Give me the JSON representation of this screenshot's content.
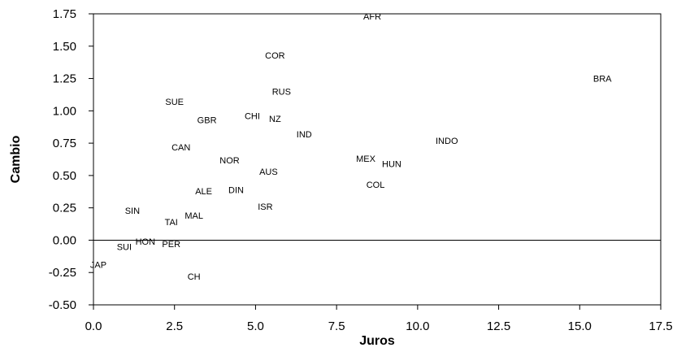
{
  "chart_data": {
    "type": "scatter",
    "xlabel": "Juros",
    "ylabel": "Cambio",
    "xlim": [
      0,
      17.5
    ],
    "ylim": [
      -0.5,
      1.75
    ],
    "x_ticks": [
      "0.0",
      "2.5",
      "5.0",
      "7.5",
      "10.0",
      "12.5",
      "15.0",
      "17.5"
    ],
    "y_ticks": [
      "1.75",
      "1.50",
      "1.25",
      "1.00",
      "0.75",
      "0.50",
      "0.25",
      "0.00",
      "-0.25",
      "-0.50"
    ],
    "x_tick_values": [
      0,
      2.5,
      5,
      7.5,
      10,
      12.5,
      15,
      17.5
    ],
    "y_tick_values": [
      1.75,
      1.5,
      1.25,
      1.0,
      0.75,
      0.5,
      0.25,
      0.0,
      -0.25,
      -0.5
    ],
    "zero_line": true,
    "grid": false,
    "points": [
      {
        "label": "AFR",
        "x": 8.6,
        "y": 1.73
      },
      {
        "label": "COR",
        "x": 5.6,
        "y": 1.43
      },
      {
        "label": "BRA",
        "x": 15.7,
        "y": 1.25
      },
      {
        "label": "RUS",
        "x": 5.8,
        "y": 1.15
      },
      {
        "label": "SUE",
        "x": 2.5,
        "y": 1.07
      },
      {
        "label": "CHI",
        "x": 4.9,
        "y": 0.96
      },
      {
        "label": "NZ",
        "x": 5.6,
        "y": 0.94
      },
      {
        "label": "GBR",
        "x": 3.5,
        "y": 0.93
      },
      {
        "label": "IND",
        "x": 6.5,
        "y": 0.82
      },
      {
        "label": "INDO",
        "x": 10.9,
        "y": 0.77
      },
      {
        "label": "CAN",
        "x": 2.7,
        "y": 0.72
      },
      {
        "label": "MEX",
        "x": 8.4,
        "y": 0.63
      },
      {
        "label": "NOR",
        "x": 4.2,
        "y": 0.62
      },
      {
        "label": "HUN",
        "x": 9.2,
        "y": 0.59
      },
      {
        "label": "AUS",
        "x": 5.4,
        "y": 0.53
      },
      {
        "label": "COL",
        "x": 8.7,
        "y": 0.43
      },
      {
        "label": "DIN",
        "x": 4.4,
        "y": 0.39
      },
      {
        "label": "ALE",
        "x": 3.4,
        "y": 0.38
      },
      {
        "label": "ISR",
        "x": 5.3,
        "y": 0.26
      },
      {
        "label": "SIN",
        "x": 1.2,
        "y": 0.23
      },
      {
        "label": "MAL",
        "x": 3.1,
        "y": 0.19
      },
      {
        "label": "TAI",
        "x": 2.4,
        "y": 0.14
      },
      {
        "label": "HON",
        "x": 1.6,
        "y": -0.01
      },
      {
        "label": "PER",
        "x": 2.4,
        "y": -0.03
      },
      {
        "label": "SUI",
        "x": 0.95,
        "y": -0.05
      },
      {
        "label": "JAP",
        "x": 0.15,
        "y": -0.19
      },
      {
        "label": "CH",
        "x": 3.1,
        "y": -0.28
      }
    ]
  }
}
